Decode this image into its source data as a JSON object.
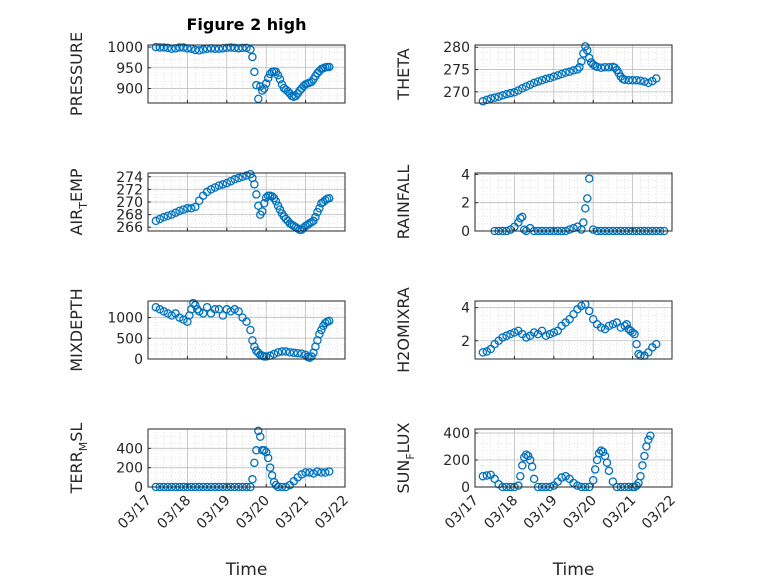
{
  "figure": {
    "title": "Figure 2 high"
  },
  "x_axis": {
    "label": "Time",
    "ticks": [
      "03/17",
      "03/18",
      "03/19",
      "03/20",
      "03/21",
      "03/22"
    ],
    "range_days": [
      0,
      5
    ]
  },
  "colors": {
    "marker": "#0072BD",
    "axis": "#262626",
    "grid": "#d0d0d0"
  },
  "chart_data": [
    {
      "type": "scatter",
      "ylabel": "PRESSURE",
      "ylim": [
        865,
        1005
      ],
      "yticks": [
        900,
        950,
        1000
      ],
      "ytick_labels": [
        "900",
        "950",
        "1000"
      ],
      "x": [
        0.2,
        0.3,
        0.4,
        0.5,
        0.6,
        0.7,
        0.8,
        0.9,
        1.0,
        1.1,
        1.2,
        1.3,
        1.4,
        1.5,
        1.6,
        1.7,
        1.8,
        1.9,
        2.0,
        2.1,
        2.2,
        2.3,
        2.4,
        2.5,
        2.6,
        2.65,
        2.7,
        2.75,
        2.8,
        2.85,
        2.9,
        2.95,
        3.0,
        3.05,
        3.1,
        3.15,
        3.2,
        3.25,
        3.3,
        3.35,
        3.4,
        3.45,
        3.5,
        3.55,
        3.6,
        3.65,
        3.7,
        3.75,
        3.8,
        3.85,
        3.9,
        3.95,
        4.0,
        4.05,
        4.1,
        4.15,
        4.2,
        4.25,
        4.3,
        4.35,
        4.4,
        4.45,
        4.5,
        4.55,
        4.6
      ],
      "y": [
        1000,
        999,
        999,
        998,
        996,
        997,
        999,
        999,
        997,
        996,
        993,
        992,
        994,
        996,
        997,
        996,
        996,
        997,
        998,
        999,
        998,
        997,
        998,
        998,
        994,
        976,
        940,
        908,
        875,
        905,
        895,
        900,
        912,
        925,
        935,
        940,
        941,
        940,
        932,
        922,
        910,
        901,
        897,
        893,
        888,
        882,
        880,
        882,
        888,
        895,
        900,
        906,
        910,
        912,
        914,
        916,
        922,
        930,
        937,
        942,
        947,
        949,
        951,
        952,
        952
      ]
    },
    {
      "type": "scatter",
      "ylabel": "THETA",
      "ylim": [
        267.5,
        280.5
      ],
      "yticks": [
        270,
        275,
        280
      ],
      "ytick_labels": [
        "270",
        "275",
        "280"
      ],
      "x": [
        0.2,
        0.3,
        0.4,
        0.5,
        0.6,
        0.7,
        0.8,
        0.9,
        1.0,
        1.1,
        1.2,
        1.3,
        1.4,
        1.5,
        1.6,
        1.7,
        1.8,
        1.9,
        2.0,
        2.1,
        2.2,
        2.3,
        2.4,
        2.5,
        2.6,
        2.65,
        2.7,
        2.75,
        2.8,
        2.85,
        2.9,
        2.95,
        3.0,
        3.05,
        3.1,
        3.2,
        3.3,
        3.4,
        3.5,
        3.55,
        3.6,
        3.65,
        3.7,
        3.75,
        3.8,
        3.9,
        4.0,
        4.1,
        4.2,
        4.3,
        4.4,
        4.5,
        4.6
      ],
      "y": [
        267.9,
        268.2,
        268.5,
        268.7,
        268.9,
        269.2,
        269.5,
        269.7,
        269.9,
        270.3,
        270.8,
        271.2,
        271.6,
        272.0,
        272.3,
        272.6,
        272.9,
        273.1,
        273.4,
        273.7,
        274.0,
        274.3,
        274.5,
        274.8,
        275.0,
        275.5,
        276.8,
        278.6,
        280.2,
        279.3,
        277.6,
        276.6,
        276.1,
        275.8,
        275.6,
        275.4,
        275.5,
        275.5,
        275.6,
        275.4,
        274.9,
        274.2,
        273.4,
        272.9,
        272.7,
        272.6,
        272.6,
        272.6,
        272.5,
        272.3,
        272.0,
        272.4,
        273.0
      ]
    },
    {
      "type": "scatter",
      "ylabel": "AIR_TEMP",
      "ylim": [
        265.4,
        274.6
      ],
      "yticks": [
        266,
        268,
        270,
        272,
        274
      ],
      "ytick_labels": [
        "266",
        "268",
        "270",
        "272",
        "274"
      ],
      "x": [
        0.2,
        0.3,
        0.4,
        0.5,
        0.6,
        0.7,
        0.8,
        0.9,
        1.0,
        1.1,
        1.2,
        1.3,
        1.4,
        1.5,
        1.6,
        1.7,
        1.8,
        1.9,
        2.0,
        2.1,
        2.2,
        2.3,
        2.4,
        2.5,
        2.6,
        2.65,
        2.7,
        2.75,
        2.8,
        2.85,
        2.9,
        2.95,
        3.0,
        3.05,
        3.1,
        3.15,
        3.2,
        3.25,
        3.3,
        3.35,
        3.4,
        3.45,
        3.5,
        3.55,
        3.6,
        3.65,
        3.7,
        3.75,
        3.8,
        3.85,
        3.9,
        3.95,
        4.0,
        4.05,
        4.1,
        4.15,
        4.2,
        4.25,
        4.3,
        4.35,
        4.4,
        4.45,
        4.5,
        4.55,
        4.6
      ],
      "y": [
        267.0,
        267.3,
        267.6,
        267.8,
        268.0,
        268.3,
        268.6,
        268.8,
        269.0,
        269.0,
        269.2,
        270.2,
        271.0,
        271.6,
        272.0,
        272.3,
        272.6,
        272.8,
        273.0,
        273.3,
        273.6,
        273.8,
        274.0,
        274.2,
        274.4,
        273.8,
        272.8,
        271.2,
        269.4,
        268.0,
        268.5,
        269.8,
        270.7,
        271.0,
        271.0,
        270.9,
        270.6,
        270.1,
        269.4,
        268.8,
        268.2,
        267.7,
        267.3,
        267.0,
        266.6,
        266.4,
        266.2,
        266.0,
        265.8,
        265.6,
        265.6,
        265.9,
        266.2,
        266.4,
        266.6,
        266.8,
        267.0,
        267.6,
        268.4,
        269.0,
        269.8,
        270.0,
        270.3,
        270.5,
        270.6
      ]
    },
    {
      "type": "scatter",
      "ylabel": "RAINFALL",
      "ylim": [
        0,
        4.1
      ],
      "yticks": [
        0,
        2,
        4
      ],
      "ytick_labels": [
        "0",
        "2",
        "4"
      ],
      "x": [
        0.5,
        0.6,
        0.7,
        0.8,
        0.9,
        1.0,
        1.1,
        1.15,
        1.2,
        1.25,
        1.3,
        1.4,
        1.5,
        1.6,
        1.7,
        1.8,
        1.9,
        2.0,
        2.1,
        2.2,
        2.3,
        2.4,
        2.5,
        2.6,
        2.7,
        2.75,
        2.8,
        2.85,
        2.9,
        3.0,
        3.1,
        3.2,
        3.3,
        3.4,
        3.5,
        3.6,
        3.7,
        3.8,
        3.9,
        4.0,
        4.1,
        4.2,
        4.3,
        4.4,
        4.5,
        4.6,
        4.7,
        4.8
      ],
      "y": [
        0,
        0,
        0,
        0,
        0.1,
        0.3,
        0.6,
        0.9,
        1.0,
        0.1,
        0,
        0.2,
        0,
        0,
        0,
        0,
        0,
        0,
        0,
        0,
        0,
        0.1,
        0.2,
        0.3,
        0.1,
        0.6,
        1.6,
        2.3,
        3.7,
        0.1,
        0,
        0,
        0,
        0,
        0,
        0,
        0,
        0,
        0,
        0,
        0,
        0,
        0,
        0,
        0,
        0,
        0,
        0
      ]
    },
    {
      "type": "scatter",
      "ylabel": "MIXDEPTH",
      "ylim": [
        0,
        1400
      ],
      "yticks": [
        0,
        500,
        1000
      ],
      "ytick_labels": [
        "0",
        "500",
        "1000"
      ],
      "x": [
        0.2,
        0.3,
        0.4,
        0.5,
        0.6,
        0.7,
        0.8,
        0.9,
        1.0,
        1.05,
        1.1,
        1.15,
        1.2,
        1.25,
        1.3,
        1.4,
        1.5,
        1.6,
        1.7,
        1.8,
        1.9,
        2.0,
        2.1,
        2.2,
        2.3,
        2.4,
        2.5,
        2.6,
        2.65,
        2.7,
        2.75,
        2.8,
        2.85,
        2.9,
        2.95,
        3.0,
        3.1,
        3.2,
        3.3,
        3.4,
        3.5,
        3.6,
        3.7,
        3.8,
        3.9,
        4.0,
        4.05,
        4.1,
        4.15,
        4.2,
        4.25,
        4.3,
        4.35,
        4.4,
        4.45,
        4.5,
        4.55,
        4.6
      ],
      "y": [
        1250,
        1200,
        1150,
        1100,
        1050,
        1100,
        1000,
        950,
        900,
        1050,
        1200,
        1350,
        1300,
        1200,
        1150,
        1100,
        1250,
        1100,
        1200,
        1200,
        1050,
        1200,
        1150,
        1200,
        1150,
        1000,
        900,
        700,
        450,
        300,
        200,
        150,
        100,
        80,
        60,
        60,
        80,
        120,
        160,
        180,
        180,
        160,
        150,
        140,
        130,
        100,
        50,
        30,
        60,
        150,
        300,
        450,
        600,
        700,
        800,
        870,
        900,
        920
      ]
    },
    {
      "type": "scatter",
      "ylabel": "H2OMIXRA",
      "ylim": [
        0.9,
        4.4
      ],
      "yticks": [
        2,
        4
      ],
      "ytick_labels": [
        "2",
        "4"
      ],
      "x": [
        0.2,
        0.3,
        0.4,
        0.5,
        0.6,
        0.7,
        0.8,
        0.9,
        1.0,
        1.1,
        1.2,
        1.3,
        1.4,
        1.5,
        1.6,
        1.7,
        1.8,
        1.9,
        2.0,
        2.1,
        2.2,
        2.3,
        2.4,
        2.5,
        2.6,
        2.7,
        2.8,
        2.9,
        3.0,
        3.1,
        3.2,
        3.3,
        3.4,
        3.5,
        3.6,
        3.7,
        3.8,
        3.85,
        3.9,
        3.95,
        4.0,
        4.05,
        4.1,
        4.15,
        4.2,
        4.3,
        4.4,
        4.5,
        4.6
      ],
      "y": [
        1.3,
        1.35,
        1.5,
        1.8,
        2.0,
        2.2,
        2.3,
        2.4,
        2.5,
        2.6,
        2.4,
        2.2,
        2.3,
        2.5,
        2.4,
        2.6,
        2.3,
        2.4,
        2.5,
        2.6,
        2.9,
        3.1,
        3.3,
        3.6,
        3.9,
        4.1,
        4.2,
        3.8,
        3.3,
        3.0,
        2.8,
        2.7,
        2.9,
        3.0,
        3.1,
        2.8,
        2.9,
        3.0,
        2.7,
        2.6,
        2.5,
        2.4,
        1.8,
        1.2,
        1.1,
        1.1,
        1.3,
        1.6,
        1.8
      ]
    },
    {
      "type": "scatter",
      "ylabel": "TERR_MSL",
      "ylim": [
        0,
        600
      ],
      "yticks": [
        0,
        200,
        400
      ],
      "ytick_labels": [
        "0",
        "200",
        "400"
      ],
      "x": [
        0.2,
        0.3,
        0.4,
        0.5,
        0.6,
        0.7,
        0.8,
        0.9,
        1.0,
        1.1,
        1.2,
        1.3,
        1.4,
        1.5,
        1.6,
        1.7,
        1.8,
        1.9,
        2.0,
        2.1,
        2.2,
        2.3,
        2.4,
        2.5,
        2.6,
        2.65,
        2.7,
        2.75,
        2.8,
        2.85,
        2.9,
        2.95,
        3.0,
        3.05,
        3.1,
        3.15,
        3.2,
        3.25,
        3.3,
        3.4,
        3.5,
        3.6,
        3.7,
        3.8,
        3.9,
        4.0,
        4.1,
        4.2,
        4.3,
        4.4,
        4.5,
        4.6
      ],
      "y": [
        0,
        0,
        0,
        0,
        0,
        0,
        0,
        0,
        0,
        0,
        0,
        0,
        0,
        0,
        0,
        0,
        0,
        0,
        0,
        0,
        0,
        0,
        0,
        0,
        0,
        80,
        250,
        380,
        580,
        520,
        380,
        380,
        360,
        300,
        200,
        120,
        50,
        20,
        0,
        0,
        0,
        20,
        60,
        100,
        130,
        150,
        150,
        140,
        160,
        150,
        150,
        160
      ]
    },
    {
      "type": "scatter",
      "ylabel": "SUN_FLUX",
      "ylim": [
        0,
        430
      ],
      "yticks": [
        0,
        200,
        400
      ],
      "ytick_labels": [
        "0",
        "200",
        "400"
      ],
      "x": [
        0.2,
        0.3,
        0.4,
        0.5,
        0.6,
        0.7,
        0.8,
        0.9,
        1.0,
        1.1,
        1.15,
        1.2,
        1.25,
        1.3,
        1.35,
        1.4,
        1.45,
        1.5,
        1.6,
        1.7,
        1.8,
        1.9,
        2.0,
        2.1,
        2.2,
        2.3,
        2.4,
        2.5,
        2.6,
        2.7,
        2.8,
        2.9,
        3.0,
        3.05,
        3.1,
        3.15,
        3.2,
        3.25,
        3.3,
        3.35,
        3.4,
        3.5,
        3.6,
        3.7,
        3.8,
        3.9,
        4.0,
        4.05,
        4.1,
        4.15,
        4.2,
        4.25,
        4.3,
        4.35,
        4.4,
        4.45
      ],
      "y": [
        80,
        85,
        90,
        60,
        20,
        0,
        0,
        0,
        0,
        10,
        80,
        160,
        220,
        240,
        230,
        200,
        150,
        60,
        0,
        0,
        0,
        0,
        10,
        40,
        70,
        80,
        60,
        30,
        10,
        0,
        0,
        0,
        50,
        130,
        200,
        250,
        270,
        260,
        230,
        180,
        120,
        40,
        0,
        0,
        0,
        0,
        0,
        0,
        10,
        30,
        80,
        160,
        230,
        300,
        350,
        380
      ]
    }
  ]
}
